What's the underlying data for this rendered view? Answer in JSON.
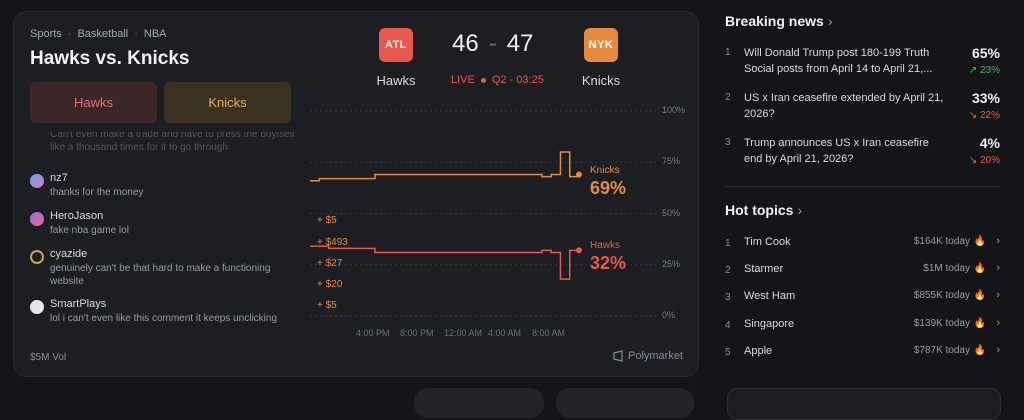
{
  "breadcrumb": {
    "sport": "Sports",
    "league_group": "Basketball",
    "league": "NBA"
  },
  "market_title": "Hawks vs. Knicks",
  "pick_buttons": {
    "hawks": "Hawks",
    "knicks": "Knicks"
  },
  "game": {
    "home": {
      "abbr": "ATL",
      "name": "Hawks",
      "score": "46",
      "color": "#e8584f"
    },
    "away": {
      "abbr": "NYK",
      "name": "Knicks",
      "score": "47",
      "color": "#e88a3c"
    },
    "status": "LIVE",
    "clock": "Q2 - 03:25"
  },
  "comments": [
    {
      "name": "",
      "text": "Can't even make a trade and have to press the buy/sell like a thousand times for it to go through",
      "avatar_color": "#555"
    },
    {
      "name": "nz7",
      "text": "thanks for the money",
      "avatar_color": "#9b7be0"
    },
    {
      "name": "HeroJason",
      "text": "fake nba game lol",
      "avatar_color": "#c46bd6"
    },
    {
      "name": "cyazide",
      "text": "genuinely can't be that hard to make a functioning website",
      "avatar_color": "#c9a64a"
    },
    {
      "name": "SmartPlays",
      "text": "lol i can't even like this comment it keeps unclicking",
      "avatar_color": "#dcdcdc"
    }
  ],
  "volume": "$5M Vol",
  "brand": "Polymarket",
  "chart_data": {
    "type": "line",
    "x_tick_labels": [
      "4:00 PM",
      "8:00 PM",
      "12:00 AM",
      "4:00 AM",
      "8:00 AM"
    ],
    "y_tick_labels": [
      "100%",
      "75%",
      "50%",
      "25%",
      "0%"
    ],
    "ylim": [
      0,
      100
    ],
    "grid": true,
    "series": [
      {
        "name": "Knicks",
        "color": "#e88a3c",
        "current": "69%",
        "values": [
          66,
          67,
          67,
          67,
          67,
          67,
          67,
          69,
          69,
          69,
          69,
          69,
          69,
          69,
          69,
          69,
          69,
          69,
          69,
          69,
          69,
          69,
          69,
          69,
          69,
          68,
          69,
          80,
          68,
          69
        ]
      },
      {
        "name": "Hawks",
        "color": "#e8584f",
        "current": "32%",
        "values": [
          34,
          34,
          33,
          33,
          33,
          33,
          33,
          31,
          31,
          31,
          31,
          31,
          31,
          31,
          31,
          31,
          31,
          31,
          31,
          31,
          31,
          31,
          31,
          31,
          31,
          32,
          31,
          18,
          32,
          32
        ]
      }
    ],
    "trade_labels": [
      "+ $5",
      "+ $493",
      "+ $27",
      "+ $20",
      "+ $5"
    ]
  },
  "breaking_news": {
    "header": "Breaking news",
    "items": [
      {
        "rank": "1",
        "question": "Will Donald Trump post 180-199 Truth Social posts from April 14 to April 21,...",
        "pct": "65%",
        "change": "↗ 23%",
        "dir": "up"
      },
      {
        "rank": "2",
        "question": "US x Iran ceasefire extended by April 21, 2026?",
        "pct": "33%",
        "change": "↘ 22%",
        "dir": "down"
      },
      {
        "rank": "3",
        "question": "Trump announces US x Iran ceasefire end by April 21, 2026?",
        "pct": "4%",
        "change": "↘ 20%",
        "dir": "down"
      }
    ]
  },
  "hot_topics": {
    "header": "Hot topics",
    "items": [
      {
        "rank": "1",
        "name": "Tim Cook",
        "volume": "$164K today"
      },
      {
        "rank": "2",
        "name": "Starmer",
        "volume": "$1M today"
      },
      {
        "rank": "3",
        "name": "West Ham",
        "volume": "$855K today"
      },
      {
        "rank": "4",
        "name": "Singapore",
        "volume": "$139K today"
      },
      {
        "rank": "5",
        "name": "Apple",
        "volume": "$787K today"
      }
    ]
  },
  "colors": {
    "up": "#3fb950",
    "down": "#e8584f",
    "fire": "#e8584f"
  }
}
